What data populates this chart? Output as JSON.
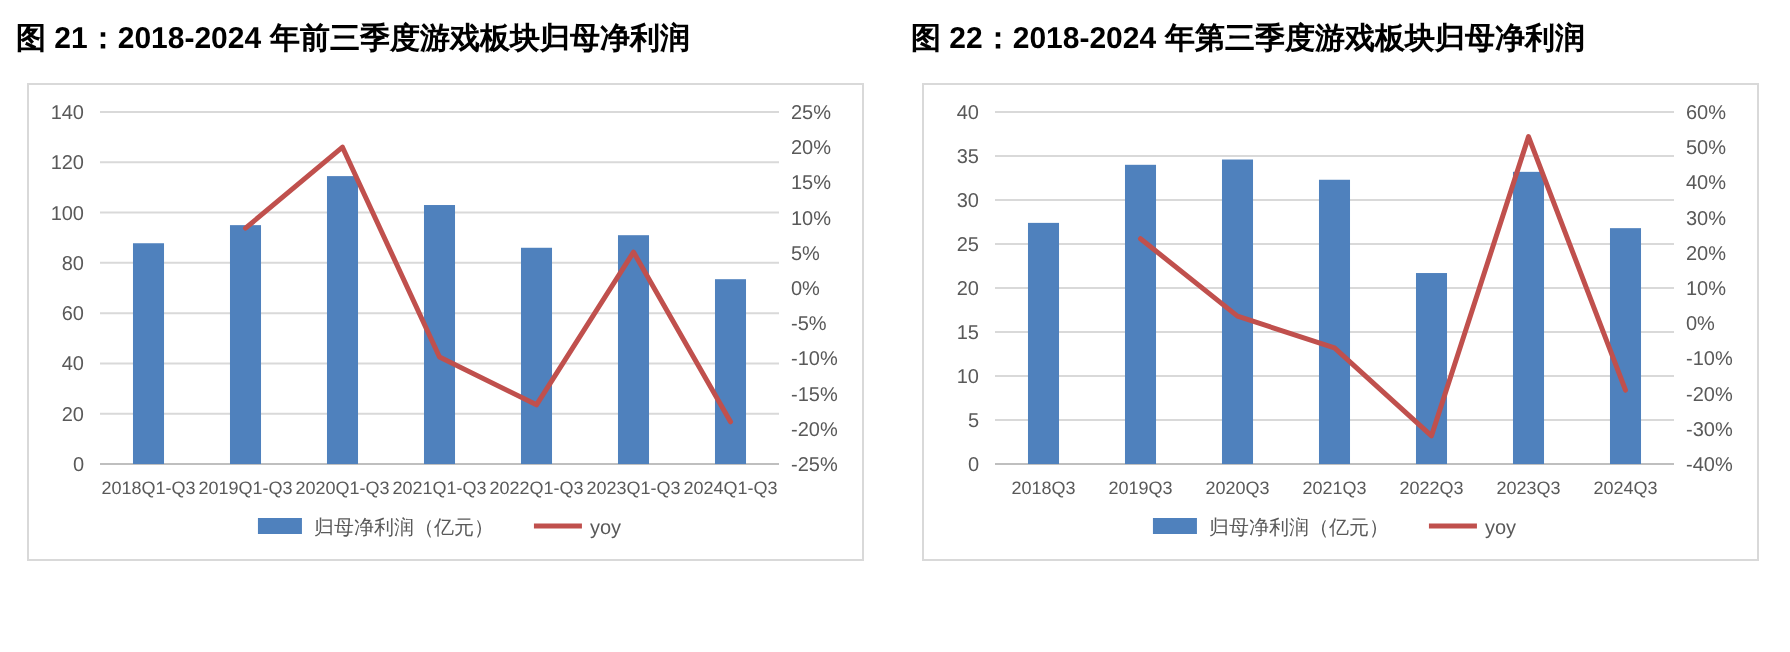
{
  "chart_data": [
    {
      "type": "bar",
      "title": "图 21：2018-2024 年前三季度游戏板块归母净利润",
      "categories": [
        "2018Q1-Q3",
        "2019Q1-Q3",
        "2020Q1-Q3",
        "2021Q1-Q3",
        "2022Q1-Q3",
        "2023Q1-Q3",
        "2024Q1-Q3"
      ],
      "series": [
        {
          "name": "归母净利润（亿元）",
          "color": "#4f81bd",
          "values": [
            87.8,
            95,
            114.5,
            103,
            86,
            91,
            73.5
          ]
        },
        {
          "name": "yoy",
          "type": "line",
          "axis": "y2",
          "color": "#c0504d",
          "values": [
            null,
            8.5,
            20,
            -9.8,
            -16.6,
            5.1,
            -19
          ]
        }
      ],
      "ylim": [
        0,
        140
      ],
      "yticks": [
        0,
        20,
        40,
        60,
        80,
        100,
        120,
        140
      ],
      "y2lim": [
        -25,
        25
      ],
      "y2ticks": [
        {
          "value": -25,
          "label": "-25%"
        },
        {
          "value": -20,
          "label": "-20%"
        },
        {
          "value": -15,
          "label": "-15%"
        },
        {
          "value": -10,
          "label": "-10%"
        },
        {
          "value": -5,
          "label": "-5%"
        },
        {
          "value": 0,
          "label": "0%"
        },
        {
          "value": 5,
          "label": "5%"
        },
        {
          "value": 10,
          "label": "10%"
        },
        {
          "value": 15,
          "label": "15%"
        },
        {
          "value": 20,
          "label": "20%"
        },
        {
          "value": 25,
          "label": "25%"
        }
      ],
      "grid": "y",
      "legend": "bottom"
    },
    {
      "type": "bar",
      "title": "图 22：2018-2024 年第三季度游戏板块归母净利润",
      "categories": [
        "2018Q3",
        "2019Q3",
        "2020Q3",
        "2021Q3",
        "2022Q3",
        "2023Q3",
        "2024Q3"
      ],
      "series": [
        {
          "name": "归母净利润（亿元）",
          "color": "#4f81bd",
          "values": [
            27.4,
            34,
            34.6,
            32.3,
            21.7,
            33.2,
            26.8
          ]
        },
        {
          "name": "yoy",
          "type": "line",
          "axis": "y2",
          "color": "#c0504d",
          "values": [
            null,
            24,
            2,
            -7,
            -32,
            53,
            -19
          ]
        }
      ],
      "ylim": [
        0,
        40
      ],
      "yticks": [
        0,
        5,
        10,
        15,
        20,
        25,
        30,
        35,
        40
      ],
      "y2lim": [
        -40,
        60
      ],
      "y2ticks": [
        {
          "value": -40,
          "label": "-40%"
        },
        {
          "value": -30,
          "label": "-30%"
        },
        {
          "value": -20,
          "label": "-20%"
        },
        {
          "value": -10,
          "label": "-10%"
        },
        {
          "value": 0,
          "label": "0%"
        },
        {
          "value": 10,
          "label": "10%"
        },
        {
          "value": 20,
          "label": "20%"
        },
        {
          "value": 30,
          "label": "30%"
        },
        {
          "value": 40,
          "label": "40%"
        },
        {
          "value": 50,
          "label": "50%"
        },
        {
          "value": 60,
          "label": "60%"
        }
      ],
      "grid": "y",
      "legend": "bottom"
    }
  ]
}
